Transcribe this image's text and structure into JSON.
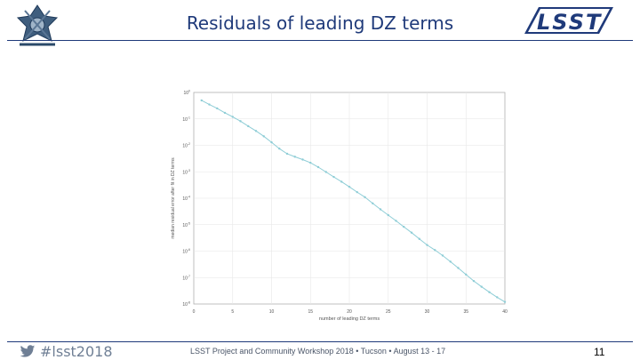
{
  "header": {
    "title": "Residuals of leading DZ terms"
  },
  "footer": {
    "hashtag": "#lsst2018",
    "text": "LSST Project and Community Workshop 2018 • Tucson • August 13 - 17",
    "page_number": "11"
  },
  "logos": {
    "left": "lsst-telescope-logo",
    "right": "lsst-logo"
  },
  "colors": {
    "title": "#1f3a7a",
    "series": "#8ecdd6"
  },
  "chart_data": {
    "type": "line",
    "xlabel": "number of leading DZ terms",
    "ylabel": "median residual error after fit in DZ terms",
    "xlim": [
      0,
      40
    ],
    "ylim": [
      1e-08,
      1
    ],
    "yscale": "log",
    "grid": true,
    "x_ticks": [
      "0",
      "5",
      "10",
      "15",
      "20",
      "25",
      "30",
      "35",
      "40"
    ],
    "y_ticks": [
      "10^0",
      "10^-1",
      "10^-2",
      "10^-3",
      "10^-4",
      "10^-5",
      "10^-6",
      "10^-7",
      "10^-8"
    ],
    "series": [
      {
        "x": [
          1,
          2,
          3,
          4,
          5,
          6,
          7,
          8,
          9,
          10,
          11,
          12,
          13,
          14,
          15,
          16,
          17,
          18,
          19,
          20,
          21,
          22,
          23,
          24,
          25,
          26,
          27,
          28,
          29,
          30,
          31,
          32,
          33,
          34,
          35,
          36,
          37,
          38,
          39,
          40
        ],
        "values": [
          0.5,
          0.35,
          0.25,
          0.17,
          0.12,
          0.082,
          0.053,
          0.035,
          0.022,
          0.013,
          0.0075,
          0.0048,
          0.0037,
          0.0029,
          0.0022,
          0.0015,
          0.00098,
          0.00064,
          0.00042,
          0.00027,
          0.00017,
          0.00011,
          6.4e-05,
          3.8e-05,
          2.3e-05,
          1.4e-05,
          8.3e-06,
          5e-06,
          2.9e-06,
          1.7e-06,
          1.1e-06,
          6.8e-07,
          4e-07,
          2.3e-07,
          1.3e-07,
          7.4e-08,
          4.5e-08,
          2.8e-08,
          1.8e-08,
          1.2e-08
        ]
      }
    ]
  }
}
